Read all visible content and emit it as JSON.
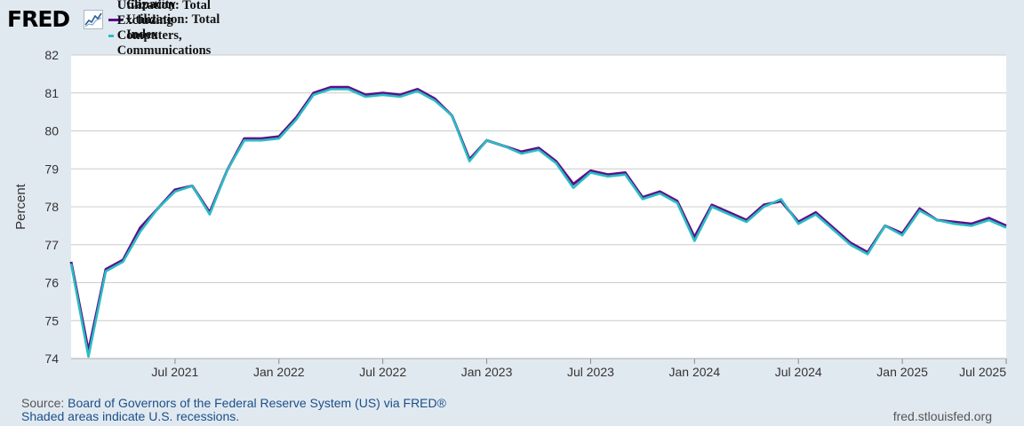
{
  "logo": {
    "text": "FRED"
  },
  "footer": {
    "source_label": "Source:",
    "source_text": "Board of Governors of the Federal Reserve System (US) via FRED®",
    "recessions_text": "Shaded areas indicate U.S. recessions.",
    "url": "fred.stlouisfed.org"
  },
  "colors": {
    "series1": "#5c0f8b",
    "series2": "#2abdc2",
    "plot_bg": "#ffffff",
    "grid": "#cccccc"
  },
  "chart_data": {
    "type": "line",
    "title": "",
    "ylabel": "Percent",
    "xlabel": "",
    "ylim": [
      74,
      82
    ],
    "yticks": [
      74,
      75,
      76,
      77,
      78,
      79,
      80,
      81,
      82
    ],
    "x_start_month": "2021-01",
    "x_end_month": "2025-07",
    "xtick_labels": [
      {
        "month_index": 6,
        "label": "Jul 2021"
      },
      {
        "month_index": 12,
        "label": "Jan 2022"
      },
      {
        "month_index": 18,
        "label": "Jul 2022"
      },
      {
        "month_index": 24,
        "label": "Jan 2023"
      },
      {
        "month_index": 30,
        "label": "Jul 2023"
      },
      {
        "month_index": 36,
        "label": "Jan 2024"
      },
      {
        "month_index": 42,
        "label": "Jul 2024"
      },
      {
        "month_index": 48,
        "label": "Jan 2025"
      },
      {
        "month_index": 54,
        "label": "Jul 2025"
      }
    ],
    "series": [
      {
        "name": "Capacity Utilization: Total Index",
        "color": "#5c0f8b",
        "values": [
          76.55,
          74.2,
          76.35,
          76.6,
          77.45,
          77.95,
          78.45,
          78.55,
          77.85,
          78.95,
          79.8,
          79.8,
          79.85,
          80.35,
          81.0,
          81.15,
          81.15,
          80.95,
          81.0,
          80.95,
          81.1,
          80.85,
          80.4,
          79.25,
          79.75,
          79.6,
          79.45,
          79.55,
          79.2,
          78.6,
          78.95,
          78.85,
          78.9,
          78.25,
          78.4,
          78.15,
          77.2,
          78.05,
          77.85,
          77.65,
          78.05,
          78.15,
          77.6,
          77.85,
          77.45,
          77.05,
          76.8,
          77.5,
          77.3,
          77.95,
          77.65,
          77.6,
          77.55,
          77.7,
          77.5
        ]
      },
      {
        "name": "Capacity Utilization: Total Excluding Computers, Communications Equipment, and Semiconductors",
        "color": "#2abdc2",
        "values": [
          76.5,
          74.05,
          76.3,
          76.55,
          77.35,
          77.95,
          78.4,
          78.55,
          77.8,
          78.95,
          79.75,
          79.75,
          79.8,
          80.3,
          80.95,
          81.1,
          81.1,
          80.9,
          80.95,
          80.9,
          81.05,
          80.8,
          80.4,
          79.2,
          79.75,
          79.6,
          79.4,
          79.5,
          79.15,
          78.5,
          78.9,
          78.8,
          78.85,
          78.2,
          78.35,
          78.1,
          77.1,
          78.0,
          77.8,
          77.6,
          78.0,
          78.2,
          77.55,
          77.8,
          77.4,
          77.0,
          76.75,
          77.5,
          77.25,
          77.9,
          77.65,
          77.55,
          77.5,
          77.65,
          77.45
        ]
      }
    ]
  }
}
